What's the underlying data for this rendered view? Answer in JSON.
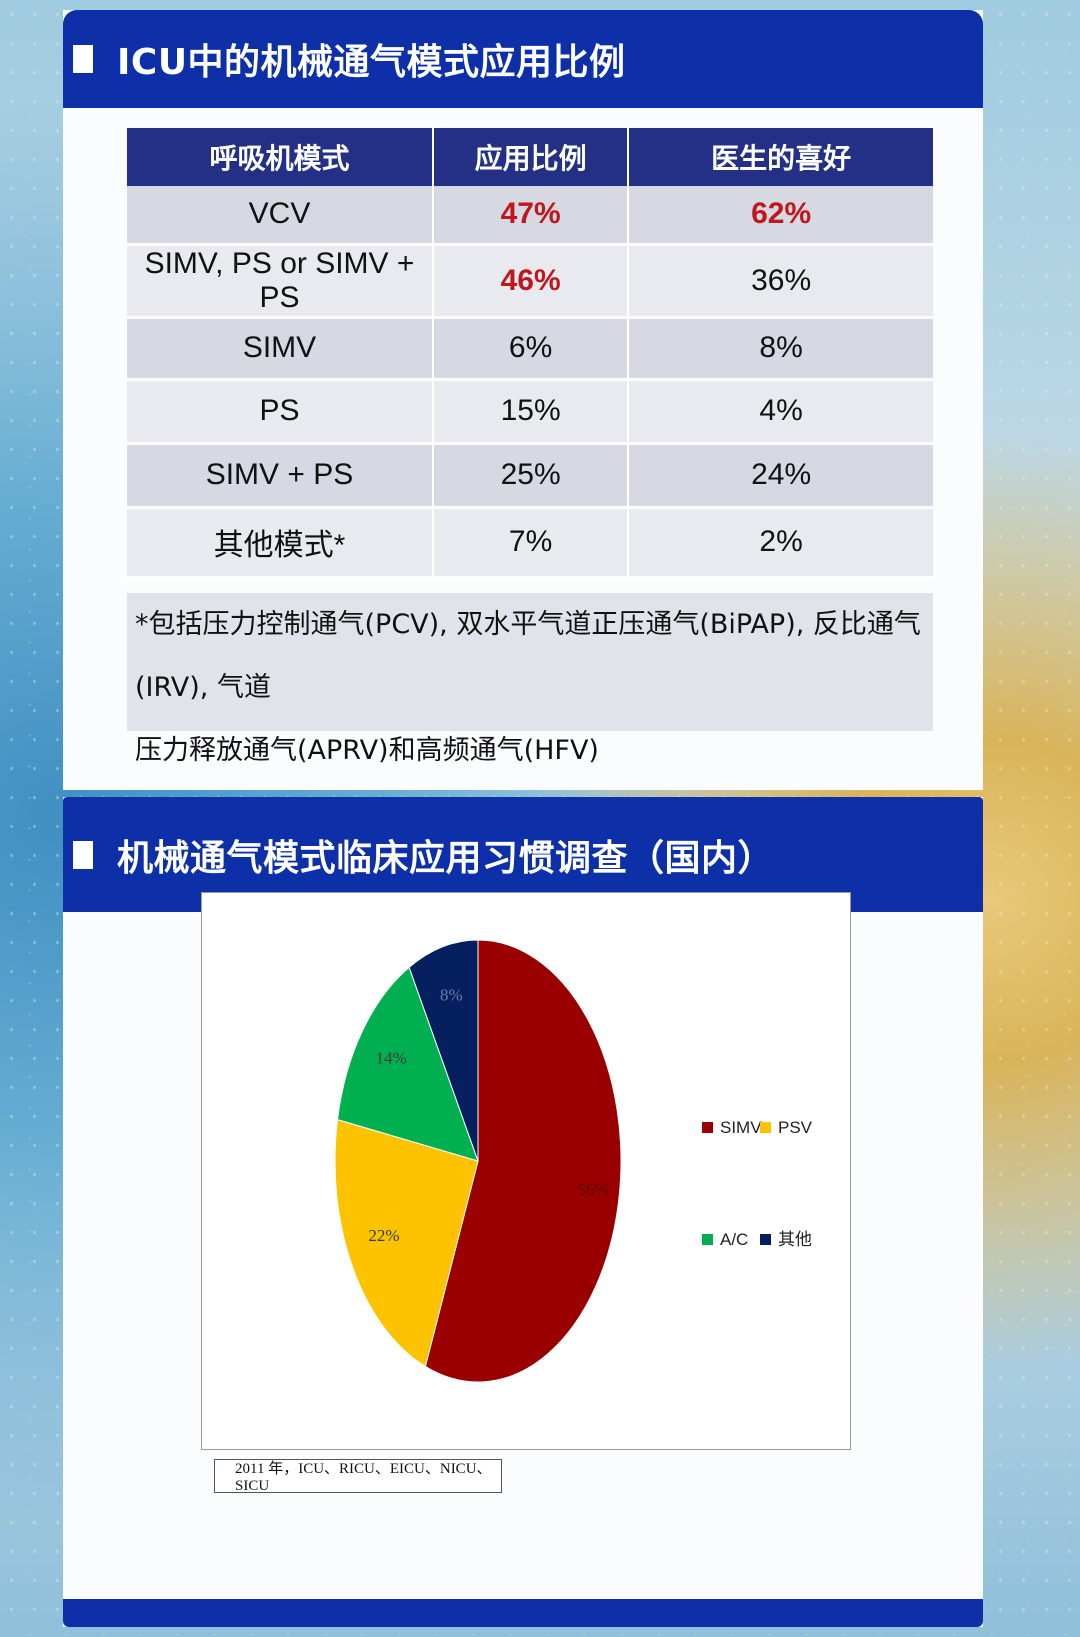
{
  "section1": {
    "title": "ICU中的机械通气模式应用比例",
    "table": {
      "headers": [
        "呼吸机模式",
        "应用比例",
        "医生的喜好"
      ],
      "rows": [
        {
          "mode": "VCV",
          "usage": "47%",
          "preference": "62%"
        },
        {
          "mode": "SIMV, PS or SIMV + PS",
          "usage": "46%",
          "preference": "36%"
        },
        {
          "mode": "SIMV",
          "usage": "6%",
          "preference": "8%"
        },
        {
          "mode": "PS",
          "usage": "15%",
          "preference": "4%"
        },
        {
          "mode": "SIMV + PS",
          "usage": "25%",
          "preference": "24%"
        },
        {
          "mode": "其他模式*",
          "usage": "7%",
          "preference": "2%"
        }
      ],
      "highlight_color": "#c0171d"
    },
    "footnote_line1": "*包括压力控制通气(PCV), 双水平气道正压通气(BiPAP), 反比通气(IRV), 气道",
    "footnote_line2": "压力释放通气(APRV)和高频通气(HFV)"
  },
  "section2": {
    "title": "机械通气模式临床应用习惯调查（国内）",
    "caption": "2011 年，ICU、RICU、EICU、NICU、SICU"
  },
  "chart_data": {
    "type": "pie",
    "categories": [
      "SIMV",
      "PSV",
      "A/C",
      "其他"
    ],
    "values": [
      56,
      22,
      14,
      8
    ],
    "labels": [
      "56%",
      "22%",
      "14%",
      "8%"
    ],
    "colors": [
      "#9a0000",
      "#fdc200",
      "#00b050",
      "#06205f"
    ],
    "legend_position": "right"
  },
  "colors": {
    "banner": "#0d2fa8",
    "table_header": "#242f86"
  }
}
